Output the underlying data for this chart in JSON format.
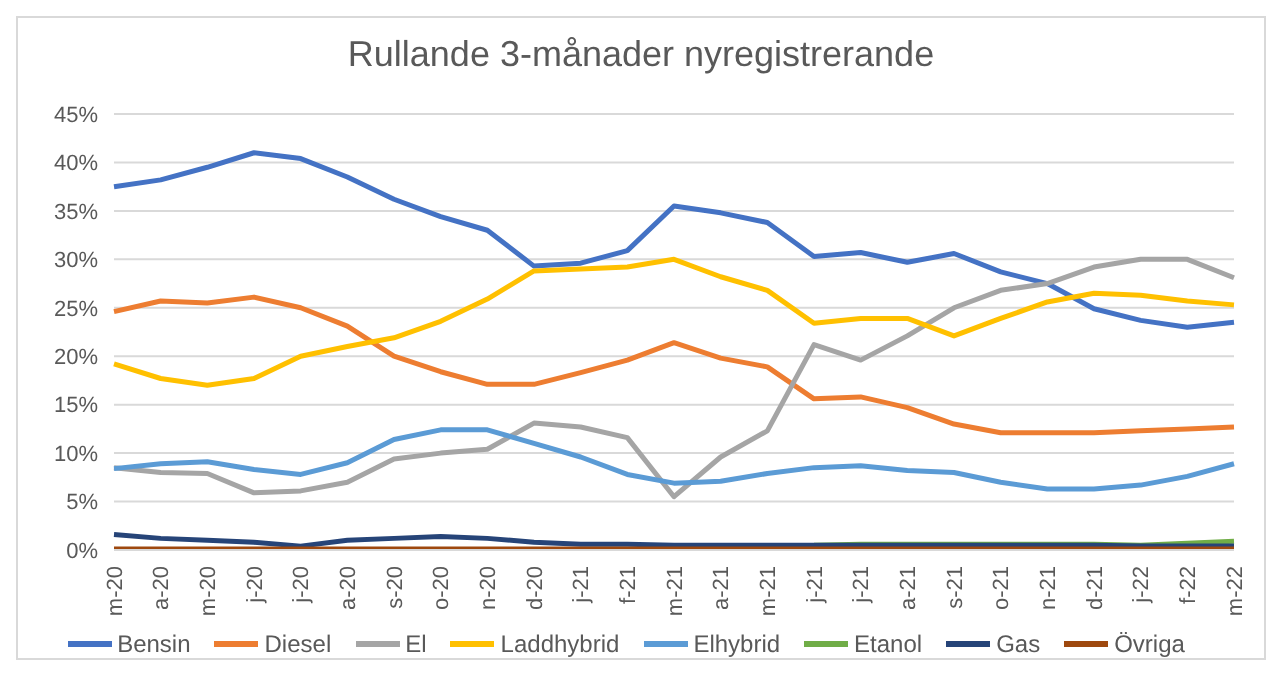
{
  "chart_data": {
    "type": "line",
    "title": "Rullande 3-månader nyregistrerande",
    "categories": [
      "m-20",
      "a-20",
      "m-20",
      "j-20",
      "j-20",
      "a-20",
      "s-20",
      "o-20",
      "n-20",
      "d-20",
      "j-21",
      "f-21",
      "m-21",
      "a-21",
      "m-21",
      "j-21",
      "j-21",
      "a-21",
      "s-21",
      "o-21",
      "n-21",
      "d-21",
      "j-22",
      "f-22",
      "m-22"
    ],
    "series": [
      {
        "name": "Bensin",
        "color": "#4472c4",
        "values": [
          37.5,
          38.2,
          39.5,
          41,
          40.4,
          38.5,
          36.2,
          34.4,
          33,
          29.3,
          29.6,
          30.9,
          35.5,
          34.8,
          33.8,
          30.3,
          30.7,
          29.7,
          30.6,
          28.7,
          27.5,
          24.9,
          23.7,
          23,
          23.5
        ]
      },
      {
        "name": "Diesel",
        "color": "#ed7d31",
        "values": [
          24.6,
          25.7,
          25.5,
          26.1,
          25,
          23.1,
          20,
          18.4,
          17.1,
          17.1,
          18.3,
          19.6,
          21.4,
          19.8,
          18.9,
          15.6,
          15.8,
          14.7,
          13,
          12.1,
          12.1,
          12.1,
          12.3,
          12.5,
          12.7
        ]
      },
      {
        "name": "El",
        "color": "#a5a5a5",
        "values": [
          8.5,
          8,
          7.9,
          5.9,
          6.1,
          7,
          9.4,
          10,
          10.4,
          13.1,
          12.7,
          11.6,
          5.5,
          9.6,
          12.3,
          21.2,
          19.6,
          22.1,
          25,
          26.8,
          27.5,
          29.2,
          30,
          30,
          28.1
        ]
      },
      {
        "name": "Laddhybrid",
        "color": "#ffc000",
        "values": [
          19.2,
          17.7,
          17,
          17.7,
          20,
          21,
          21.9,
          23.6,
          25.9,
          28.8,
          29,
          29.2,
          30,
          28.2,
          26.8,
          23.4,
          23.9,
          23.9,
          22.1,
          23.9,
          25.6,
          26.5,
          26.3,
          25.7,
          25.3
        ]
      },
      {
        "name": "Elhybrid",
        "color": "#5b9bd5",
        "values": [
          8.4,
          8.9,
          9.1,
          8.3,
          7.8,
          9,
          11.4,
          12.4,
          12.4,
          11,
          9.6,
          7.8,
          6.9,
          7.1,
          7.9,
          8.5,
          8.7,
          8.2,
          8,
          7,
          6.3,
          6.3,
          6.7,
          7.6,
          8.9
        ]
      },
      {
        "name": "Etanol",
        "color": "#70ad47",
        "values": [
          null,
          null,
          null,
          null,
          null,
          null,
          null,
          null,
          null,
          null,
          null,
          null,
          null,
          null,
          null,
          0.5,
          0.6,
          0.6,
          0.6,
          0.6,
          0.6,
          0.6,
          0.5,
          0.7,
          0.9
        ]
      },
      {
        "name": "Gas",
        "color": "#264478",
        "values": [
          1.6,
          1.2,
          1,
          0.8,
          0.4,
          1,
          1.2,
          1.4,
          1.2,
          0.8,
          0.6,
          0.6,
          0.5,
          0.5,
          0.5,
          0.5,
          0.5,
          0.5,
          0.5,
          0.5,
          0.5,
          0.5,
          0.4,
          0.4,
          0.4
        ]
      },
      {
        "name": "Övriga",
        "color": "#9e480e",
        "values": [
          0.1,
          0.1,
          0.1,
          0.1,
          0.1,
          0.1,
          0.1,
          0.1,
          0.1,
          0.1,
          0.1,
          0.1,
          0.1,
          0.1,
          0.1,
          0.1,
          0.1,
          0.1,
          0.1,
          0.1,
          0.1,
          0.1,
          0.1,
          0.1,
          0.1
        ]
      }
    ],
    "ylim": [
      0,
      45
    ],
    "yticks": [
      {
        "value": 0,
        "label": "0%"
      },
      {
        "value": 5,
        "label": "5%"
      },
      {
        "value": 10,
        "label": "10%"
      },
      {
        "value": 15,
        "label": "15%"
      },
      {
        "value": 20,
        "label": "20%"
      },
      {
        "value": 25,
        "label": "25%"
      },
      {
        "value": 30,
        "label": "30%"
      },
      {
        "value": 35,
        "label": "35%"
      },
      {
        "value": 40,
        "label": "40%"
      },
      {
        "value": 45,
        "label": "45%"
      }
    ],
    "grid": "y",
    "legend": "bottom",
    "marker": "none",
    "line_style": "solid"
  }
}
